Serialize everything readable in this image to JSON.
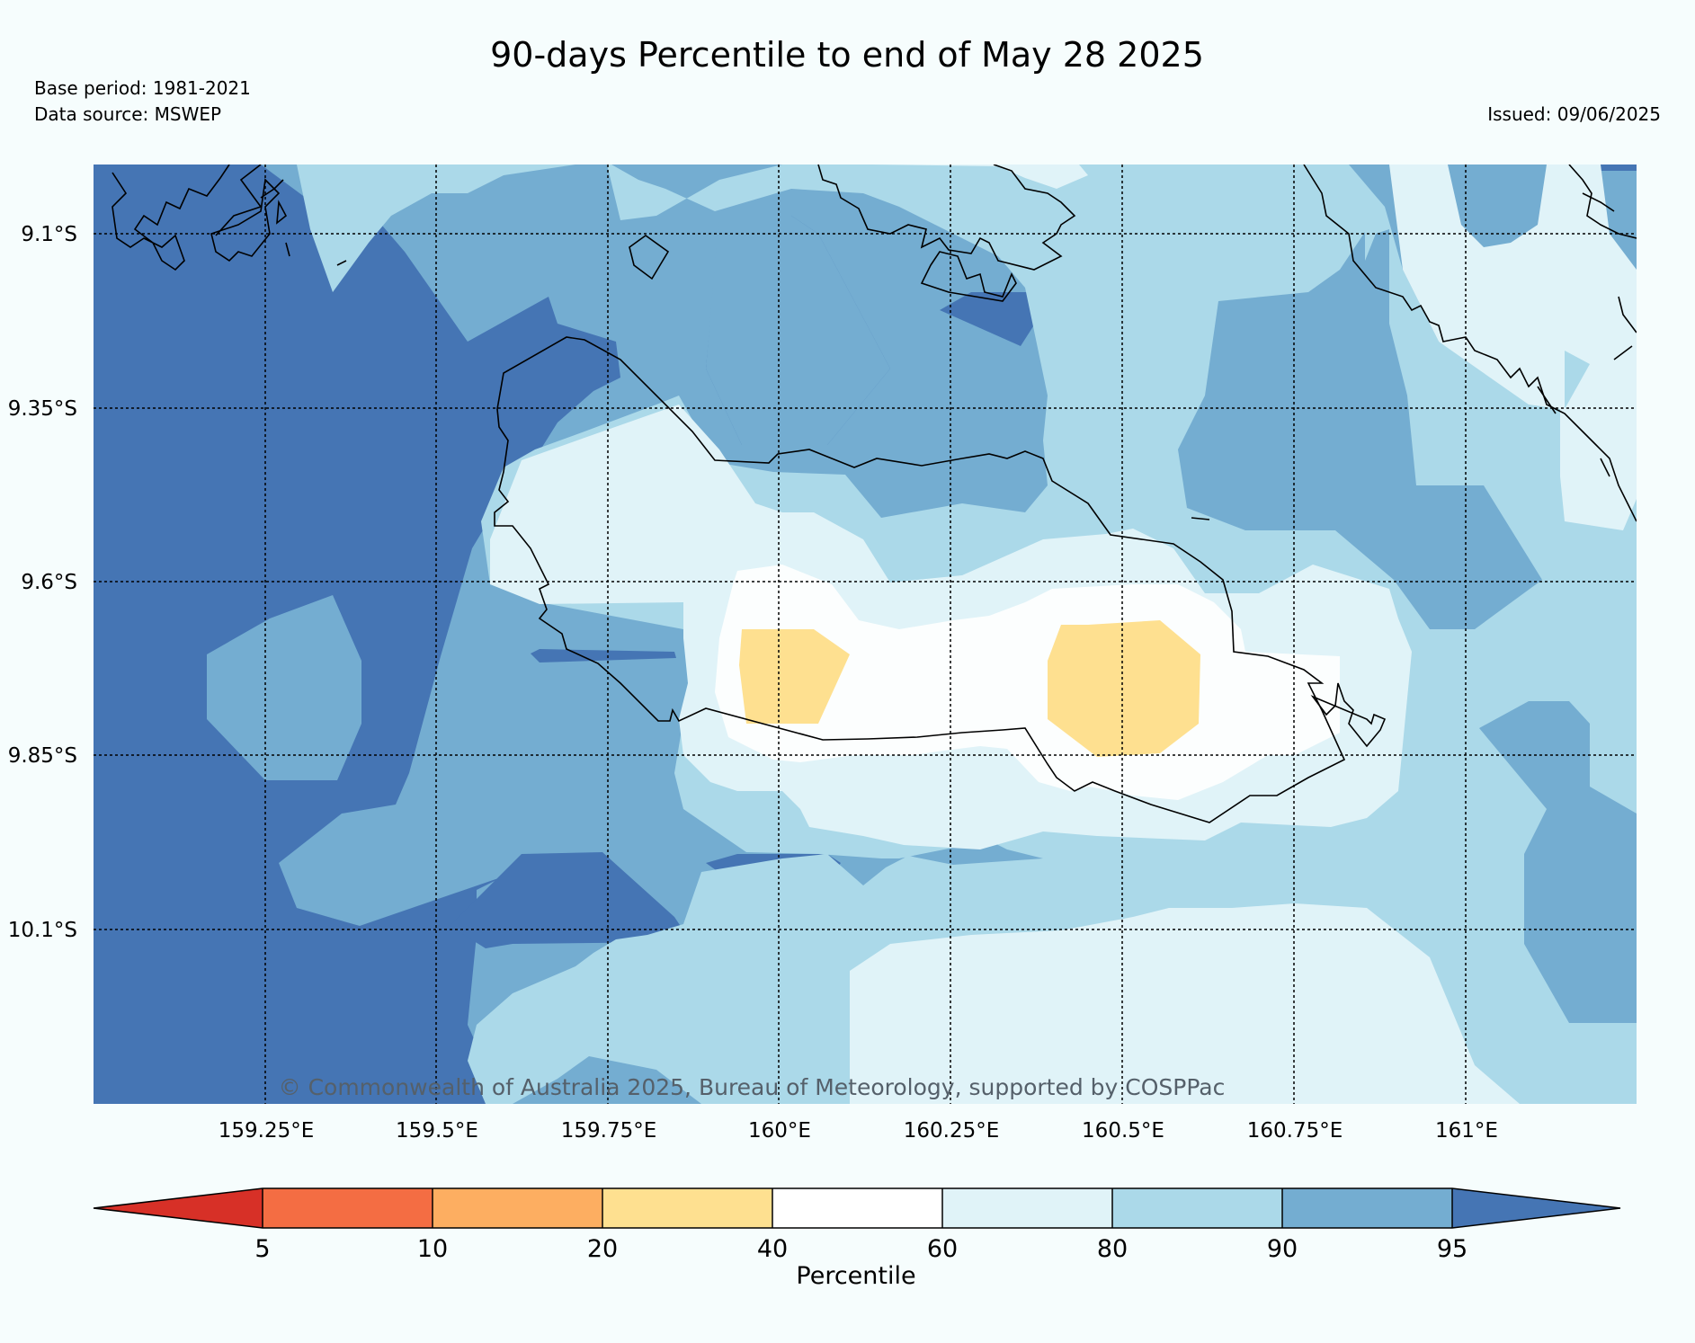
{
  "title": "90-days Percentile to end of May 28 2025",
  "base_period": "Base period: 1981-2021",
  "data_source": "Data source: MSWEP",
  "issued": "Issued: 09/06/2025",
  "copyright": "© Commonwealth of Australia 2025, Bureau of Meteorology, supported by COSPPac",
  "map": {
    "lon_ticks": [
      "159.25°E",
      "159.5°E",
      "159.75°E",
      "160°E",
      "160.25°E",
      "160.5°E",
      "160.75°E",
      "161°E"
    ],
    "lat_ticks": [
      "9.1°S",
      "9.35°S",
      "9.6°S",
      "9.85°S",
      "10.1°S"
    ],
    "colors": {
      "c95": "#4575b4",
      "c90": "#74add1",
      "c80": "#abd9e9",
      "c60": "#e0f3f8",
      "c40": "#fcfefe",
      "c20": "#fee090"
    }
  },
  "colorbar": {
    "label": "Percentile",
    "ticks": [
      "5",
      "10",
      "20",
      "40",
      "60",
      "80",
      "90",
      "95"
    ],
    "colors": [
      "#d73027",
      "#f46d43",
      "#fdae61",
      "#fee090",
      "#ffffff",
      "#e0f3f8",
      "#abd9e9",
      "#74add1",
      "#4575b4"
    ]
  }
}
